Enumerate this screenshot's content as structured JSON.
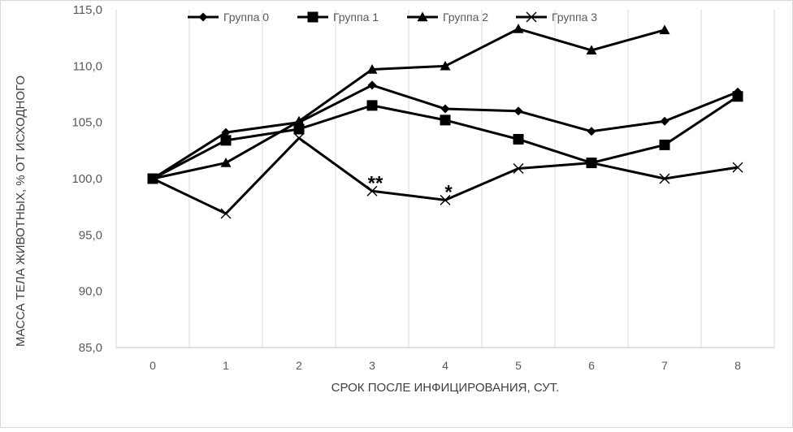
{
  "chart_data": {
    "type": "line",
    "title": "",
    "xlabel": "СРОК ПОСЛЕ ИНФИЦИРОВАНИЯ, СУТ.",
    "ylabel": "МАССА ТЕЛА ЖИВОТНЫХ, % ОТ ИСХОДНОГО",
    "categories": [
      "0",
      "1",
      "2",
      "3",
      "4",
      "5",
      "6",
      "7",
      "8"
    ],
    "ylim": [
      85,
      115
    ],
    "yticks": [
      "85,0",
      "90,0",
      "95,0",
      "100,0",
      "105,0",
      "110,0",
      "115,0"
    ],
    "grid": "vertical",
    "legend_position": "top",
    "series": [
      {
        "name": "Группа 0",
        "marker": "diamond",
        "values": [
          100.0,
          104.1,
          105.0,
          108.3,
          106.2,
          106.0,
          104.2,
          105.1,
          107.7
        ]
      },
      {
        "name": "Группа 1",
        "marker": "square",
        "values": [
          100.0,
          103.4,
          104.4,
          106.5,
          105.2,
          103.5,
          101.4,
          103.0,
          107.3
        ]
      },
      {
        "name": "Группа 2",
        "marker": "triangle",
        "values": [
          100.0,
          101.4,
          105.1,
          109.7,
          110.0,
          113.3,
          111.4,
          113.2,
          null
        ]
      },
      {
        "name": "Группа 3",
        "marker": "x",
        "values": [
          100.0,
          96.9,
          103.6,
          98.9,
          98.1,
          100.9,
          101.4,
          100.0,
          101.0
        ]
      }
    ],
    "annotations": [
      {
        "text": "**",
        "x": "3",
        "y": 98.9
      },
      {
        "text": "*",
        "x": "4",
        "y": 98.1
      }
    ]
  }
}
